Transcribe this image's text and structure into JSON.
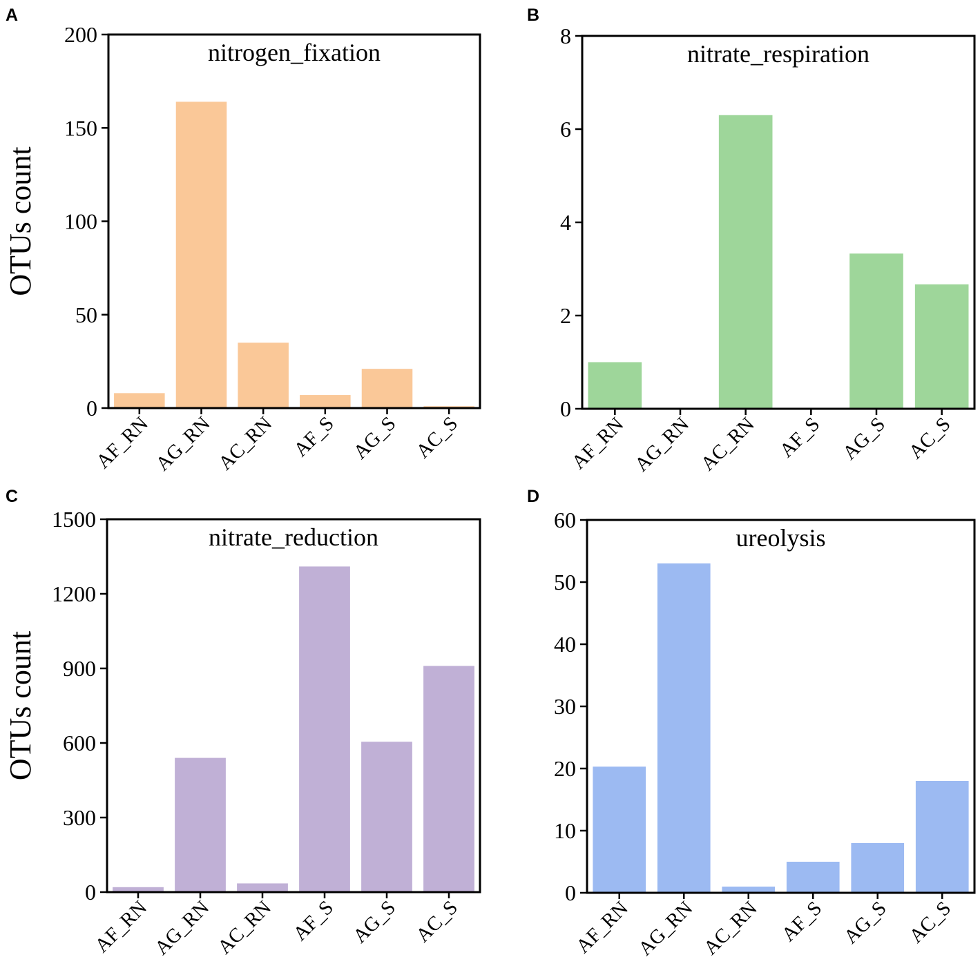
{
  "chart_data": [
    {
      "panel": "A",
      "type": "bar",
      "title": "nitrogen_fixation",
      "xlabel": "",
      "ylabel": "OTUs count",
      "categories": [
        "AF_RN",
        "AG_RN",
        "AC_RN",
        "AF_S",
        "AG_S",
        "AC_S"
      ],
      "values": [
        8,
        164,
        35,
        7,
        21,
        1
      ],
      "ylim": [
        0,
        200
      ],
      "yticks": [
        0,
        50,
        100,
        150,
        200
      ],
      "ytick_labels": [
        "0",
        "50",
        "100",
        "150",
        "200"
      ],
      "color": "#fac898"
    },
    {
      "panel": "B",
      "type": "bar",
      "title": "nitrate_respiration",
      "xlabel": "",
      "ylabel": "",
      "categories": [
        "AF_RN",
        "AG_RN",
        "AC_RN",
        "AF_S",
        "AG_S",
        "AC_S"
      ],
      "values": [
        1,
        0,
        6.3,
        0,
        3.33,
        2.67
      ],
      "ylim": [
        0,
        8
      ],
      "yticks": [
        0,
        2,
        4,
        6,
        8
      ],
      "ytick_labels": [
        "0",
        "2",
        "4",
        "6",
        "8"
      ],
      "color": "#9ed69a"
    },
    {
      "panel": "C",
      "type": "bar",
      "title": "nitrate_reduction",
      "xlabel": "",
      "ylabel": "OTUs count",
      "categories": [
        "AF_RN",
        "AG_RN",
        "AC_RN",
        "AF_S",
        "AG_S",
        "AC_S"
      ],
      "values": [
        20,
        540,
        35,
        1310,
        605,
        910
      ],
      "ylim": [
        0,
        1500
      ],
      "yticks": [
        0,
        300,
        600,
        900,
        1200,
        1500
      ],
      "ytick_labels": [
        "0",
        "300",
        "600",
        "900",
        "1200",
        "1500"
      ],
      "color": "#c0b0d6"
    },
    {
      "panel": "D",
      "type": "bar",
      "title": "ureolysis",
      "xlabel": "",
      "ylabel": "",
      "categories": [
        "AF_RN",
        "AG_RN",
        "AC_RN",
        "AF_S",
        "AG_S",
        "AC_S"
      ],
      "values": [
        20.3,
        53,
        1,
        5,
        8,
        18
      ],
      "ylim": [
        0,
        60
      ],
      "yticks": [
        0,
        10,
        20,
        30,
        40,
        50,
        60
      ],
      "ytick_labels": [
        "0",
        "10",
        "20",
        "30",
        "40",
        "50",
        "60"
      ],
      "color": "#9cbaf2"
    }
  ]
}
